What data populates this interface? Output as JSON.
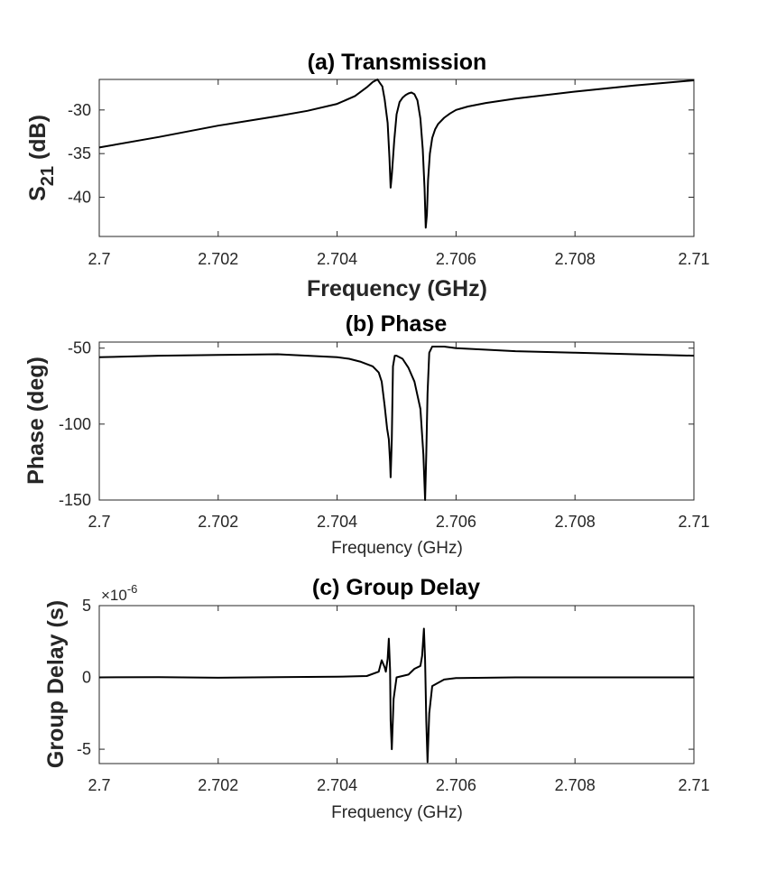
{
  "chart_data": [
    {
      "type": "line",
      "title": "(a) Transmission",
      "xlabel": "Frequency (GHz)",
      "ylabel_main": "S",
      "ylabel_sub": "21",
      "ylabel_unit": " (dB)",
      "xlim": [
        2.7,
        2.71
      ],
      "ylim": [
        -44.5,
        -26.5
      ],
      "xticks": [
        2.7,
        2.702,
        2.704,
        2.706,
        2.708,
        2.71
      ],
      "xtick_labels": [
        "2.7",
        "2.702",
        "2.704",
        "2.706",
        "2.708",
        "2.71"
      ],
      "yticks": [
        -30,
        -35,
        -40
      ],
      "ytick_labels": [
        "-30",
        "-35",
        "-40"
      ],
      "series": [
        {
          "x": [
            2.7,
            2.701,
            2.702,
            2.703,
            2.7035,
            2.704,
            2.7043,
            2.7045,
            2.7046,
            2.70468,
            2.70472,
            2.70476,
            2.7048,
            2.70485,
            2.70488,
            2.7049,
            2.70492,
            2.70496,
            2.705,
            2.70505,
            2.7051,
            2.70515,
            2.7052,
            2.70525,
            2.7053,
            2.70535,
            2.7054,
            2.70544,
            2.70547,
            2.70549,
            2.70551,
            2.70553,
            2.70556,
            2.7056,
            2.70565,
            2.7057,
            2.7058,
            2.7059,
            2.706,
            2.7062,
            2.7065,
            2.707,
            2.708,
            2.709,
            2.71
          ],
          "y": [
            -34.3,
            -33.1,
            -31.8,
            -30.7,
            -30.1,
            -29.3,
            -28.4,
            -27.4,
            -26.8,
            -26.5,
            -26.9,
            -27.3,
            -28.8,
            -31.5,
            -35.5,
            -38.9,
            -37.5,
            -33.5,
            -30.5,
            -29.1,
            -28.6,
            -28.3,
            -28.1,
            -28.0,
            -28.2,
            -28.9,
            -31.0,
            -34.5,
            -39.0,
            -43.5,
            -42.0,
            -38.0,
            -35.0,
            -33.2,
            -32.2,
            -31.6,
            -30.9,
            -30.4,
            -30.0,
            -29.6,
            -29.2,
            -28.7,
            -27.9,
            -27.2,
            -26.6
          ]
        }
      ]
    },
    {
      "type": "line",
      "title": "(b) Phase",
      "xlabel": "Frequency (GHz)",
      "ylabel": "Phase (deg)",
      "xlim": [
        2.7,
        2.71
      ],
      "ylim": [
        -150,
        -46
      ],
      "xticks": [
        2.7,
        2.702,
        2.704,
        2.706,
        2.708,
        2.71
      ],
      "xtick_labels": [
        "2.7",
        "2.702",
        "2.704",
        "2.706",
        "2.708",
        "2.71"
      ],
      "yticks": [
        -50,
        -100,
        -150
      ],
      "ytick_labels": [
        "-50",
        "-100",
        "-150"
      ],
      "series": [
        {
          "x": [
            2.7,
            2.701,
            2.702,
            2.703,
            2.7035,
            2.704,
            2.7042,
            2.7044,
            2.7046,
            2.7047,
            2.70475,
            2.7048,
            2.70484,
            2.70487,
            2.70489,
            2.7049,
            2.70492,
            2.70494,
            2.70497,
            2.705,
            2.7051,
            2.7052,
            2.7053,
            2.7054,
            2.70545,
            2.70548,
            2.7055,
            2.70552,
            2.70555,
            2.7056,
            2.7058,
            2.706,
            2.707,
            2.708,
            2.709,
            2.71
          ],
          "y": [
            -56,
            -55,
            -54.5,
            -54,
            -55,
            -56,
            -57,
            -59,
            -62,
            -66,
            -72,
            -88,
            -103,
            -110,
            -125,
            -135,
            -110,
            -62,
            -55,
            -55,
            -57,
            -63,
            -72,
            -90,
            -120,
            -150,
            -120,
            -80,
            -53,
            -49,
            -49,
            -50,
            -52,
            -53,
            -54,
            -55
          ]
        }
      ]
    },
    {
      "type": "line",
      "title": "(c) Group Delay",
      "xlabel": "Frequency (GHz)",
      "ylabel": "Group Delay (s)",
      "exponent_base": "×10",
      "exponent_power": "-6",
      "xlim": [
        2.7,
        2.71
      ],
      "ylim": [
        -6,
        5
      ],
      "xticks": [
        2.7,
        2.702,
        2.704,
        2.706,
        2.708,
        2.71
      ],
      "xtick_labels": [
        "2.7",
        "2.702",
        "2.704",
        "2.706",
        "2.708",
        "2.71"
      ],
      "yticks": [
        5,
        0,
        -5
      ],
      "ytick_labels": [
        "5",
        "0",
        "-5"
      ],
      "series": [
        {
          "x": [
            2.7,
            2.701,
            2.702,
            2.703,
            2.704,
            2.7045,
            2.7047,
            2.70475,
            2.7048,
            2.70482,
            2.70485,
            2.70487,
            2.70489,
            2.7049,
            2.70492,
            2.70495,
            2.705,
            2.7052,
            2.7053,
            2.7054,
            2.70543,
            2.70546,
            2.70548,
            2.7055,
            2.70552,
            2.70555,
            2.7056,
            2.7058,
            2.706,
            2.707,
            2.708,
            2.709,
            2.71
          ],
          "y": [
            0,
            0.02,
            -0.02,
            0.02,
            0.05,
            0.1,
            0.4,
            1.2,
            0.7,
            0.4,
            1.3,
            2.7,
            0.5,
            -3.0,
            -5.0,
            -1.5,
            0,
            0.2,
            0.6,
            0.8,
            1.5,
            3.4,
            1.2,
            -3.0,
            -5.9,
            -2.5,
            -0.6,
            -0.15,
            -0.05,
            0,
            0,
            0,
            0
          ]
        }
      ]
    }
  ]
}
